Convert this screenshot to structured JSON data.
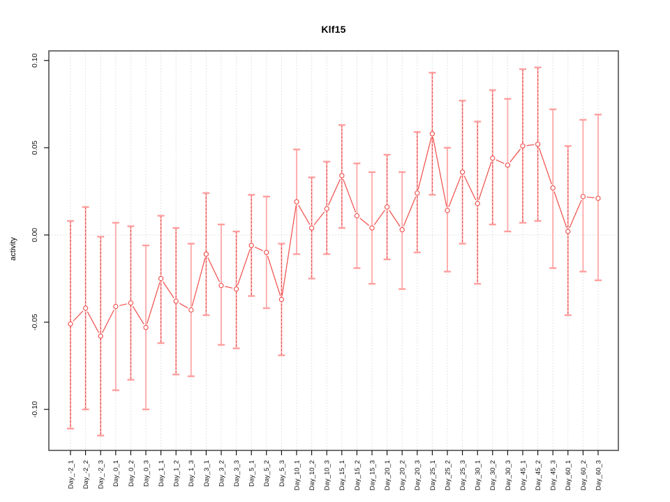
{
  "figure": {
    "window_background": "#ffffff"
  },
  "colors": {
    "series_line": "#f0524e",
    "marker_stroke": "#f0524e",
    "marker_fill": "#ffffff",
    "errorbar_stem": "#ffabab",
    "errorbar_cap": "#ff9e9e",
    "errorbar_dash_overlay": "#e04848",
    "gridline": "#d8d8d8",
    "plot_border": "#5a5a5a",
    "tick": "#000000",
    "tick_label": "#111111",
    "title_text": "#000000"
  },
  "chart_data": {
    "type": "line",
    "title": "Klf15",
    "xlabel": "",
    "ylabel": "activity",
    "legend": "none",
    "marker": "open-circle",
    "grid": "vertical-dotted-per-category-plus-zero-line",
    "ylim": [
      -0.1235,
      0.1055
    ],
    "y_ticks": [
      {
        "value": 0.1,
        "label": "0.10"
      },
      {
        "value": 0.05,
        "label": "0.05"
      },
      {
        "value": 0.0,
        "label": "0.00"
      },
      {
        "value": -0.05,
        "label": "-0.05"
      },
      {
        "value": -0.1,
        "label": "-0.10"
      }
    ],
    "categories": [
      "Day_-2_1",
      "Day_-2_2",
      "Day_-2_3",
      "Day_0_1",
      "Day_0_2",
      "Day_0_3",
      "Day_1_1",
      "Day_1_2",
      "Day_1_3",
      "Day_3_1",
      "Day_3_2",
      "Day_3_3",
      "Day_5_1",
      "Day_5_2",
      "Day_5_3",
      "Day_10_1",
      "Day_10_2",
      "Day_10_3",
      "Day_15_1",
      "Day_15_2",
      "Day_15_3",
      "Day_20_1",
      "Day_20_2",
      "Day_20_3",
      "Day_25_1",
      "Day_25_2",
      "Day_25_3",
      "Day_30_1",
      "Day_30_2",
      "Day_30_3",
      "Day_45_1",
      "Day_45_2",
      "Day_45_3",
      "Day_60_1",
      "Day_60_2",
      "Day_60_3"
    ],
    "series": [
      {
        "name": "activity",
        "values": [
          -0.051,
          -0.042,
          -0.058,
          -0.041,
          -0.039,
          -0.053,
          -0.025,
          -0.038,
          -0.043,
          -0.011,
          -0.029,
          -0.031,
          -0.006,
          -0.01,
          -0.037,
          0.019,
          0.004,
          0.015,
          0.034,
          0.011,
          0.004,
          0.016,
          0.003,
          0.024,
          0.058,
          0.014,
          0.036,
          0.018,
          0.044,
          0.04,
          0.051,
          0.052,
          0.027,
          0.002,
          0.022,
          0.021
        ],
        "lower": [
          -0.111,
          -0.1,
          -0.115,
          -0.089,
          -0.083,
          -0.1,
          -0.062,
          -0.08,
          -0.081,
          -0.046,
          -0.063,
          -0.065,
          -0.035,
          -0.042,
          -0.069,
          -0.011,
          -0.025,
          -0.011,
          0.004,
          -0.019,
          -0.028,
          -0.014,
          -0.031,
          -0.01,
          0.023,
          -0.021,
          -0.005,
          -0.028,
          0.006,
          0.002,
          0.007,
          0.008,
          -0.019,
          -0.046,
          -0.021,
          -0.026
        ],
        "upper": [
          0.008,
          0.016,
          -0.001,
          0.007,
          0.005,
          -0.006,
          0.011,
          0.004,
          -0.005,
          0.024,
          0.006,
          0.002,
          0.023,
          0.022,
          -0.005,
          0.049,
          0.033,
          0.042,
          0.063,
          0.041,
          0.036,
          0.046,
          0.036,
          0.059,
          0.093,
          0.05,
          0.077,
          0.065,
          0.083,
          0.078,
          0.095,
          0.096,
          0.072,
          0.051,
          0.066,
          0.069
        ],
        "stem_style": [
          "dashed",
          "dashed",
          "dashed",
          "solid",
          "dashed",
          "solid",
          "dashed",
          "dashed",
          "solid",
          "dashed",
          "solid",
          "dashed",
          "dashed",
          "solid",
          "dashed",
          "solid",
          "dashed",
          "dashed",
          "dashed",
          "solid",
          "solid",
          "dashed",
          "solid",
          "dashed",
          "dashed",
          "solid",
          "dashed",
          "dashed",
          "dashed",
          "solid",
          "dashed",
          "dashed",
          "solid",
          "dashed",
          "solid",
          "solid"
        ]
      }
    ]
  }
}
